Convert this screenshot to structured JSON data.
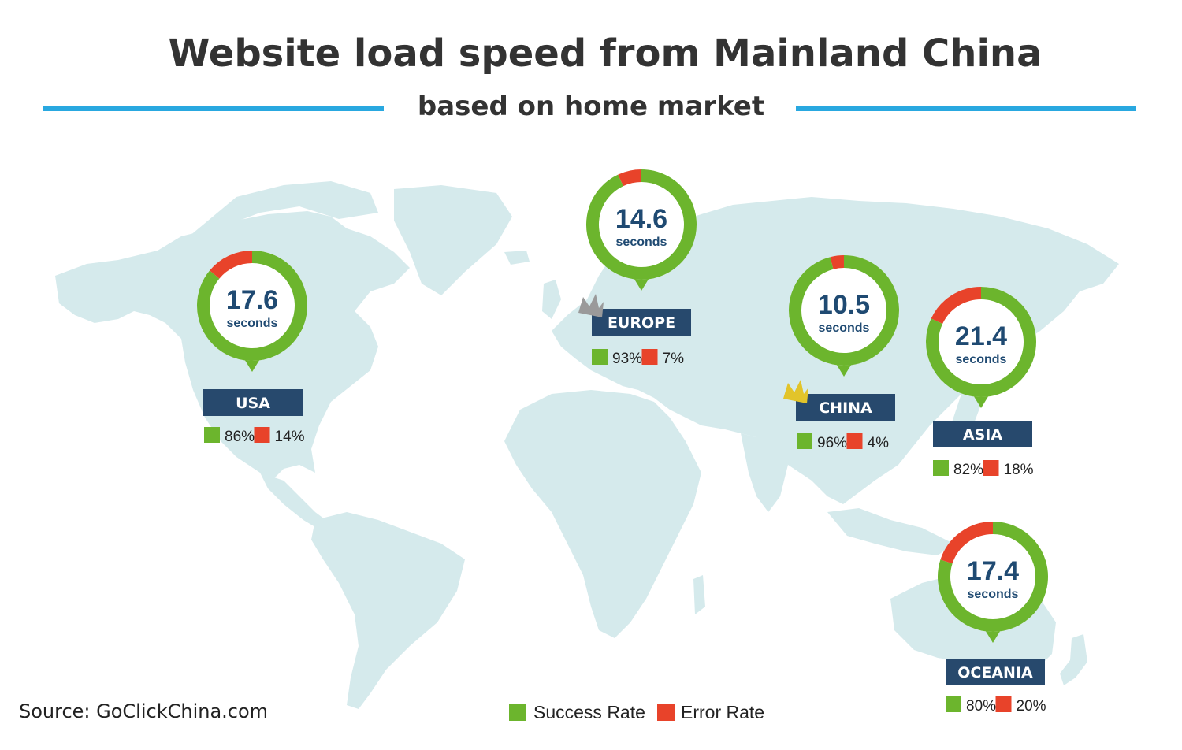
{
  "title": "Website load speed from Mainland China",
  "subtitle": "based on home market",
  "source": "Source: GoClickChina.com",
  "colors": {
    "accent_line": "#29a8e0",
    "success": "#6cb52d",
    "error": "#e8432a",
    "label_bg": "#27496d",
    "map": "#d5eaec",
    "number": "#1f4a72",
    "crown_gold": "#e2c42a",
    "crown_silver": "#9a9a9a"
  },
  "legend": {
    "success_label": "Success Rate",
    "error_label": "Error Rate"
  },
  "chart_data": {
    "type": "donut",
    "unit_label": "seconds",
    "categories": [
      "USA",
      "EUROPE",
      "CHINA",
      "ASIA",
      "OCEANIA"
    ],
    "series": [
      {
        "name": "Success Rate",
        "values": [
          86,
          93,
          96,
          82,
          80
        ]
      },
      {
        "name": "Error Rate",
        "values": [
          14,
          7,
          4,
          18,
          20
        ]
      }
    ],
    "load_time_seconds": [
      17.6,
      14.6,
      10.5,
      21.4,
      17.4
    ],
    "regions": [
      {
        "name": "USA",
        "seconds": "17.6",
        "success": 86,
        "error": 14,
        "success_text": "86%",
        "error_text": "14%",
        "crown": ""
      },
      {
        "name": "EUROPE",
        "seconds": "14.6",
        "success": 93,
        "error": 7,
        "success_text": "93%",
        "error_text": "7%",
        "crown": "silver"
      },
      {
        "name": "CHINA",
        "seconds": "10.5",
        "success": 96,
        "error": 4,
        "success_text": "96%",
        "error_text": "4%",
        "crown": "gold"
      },
      {
        "name": "ASIA",
        "seconds": "21.4",
        "success": 82,
        "error": 18,
        "success_text": "82%",
        "error_text": "18%",
        "crown": ""
      },
      {
        "name": "OCEANIA",
        "seconds": "17.4",
        "success": 80,
        "error": 20,
        "success_text": "80%",
        "error_text": "20%",
        "crown": ""
      }
    ]
  }
}
